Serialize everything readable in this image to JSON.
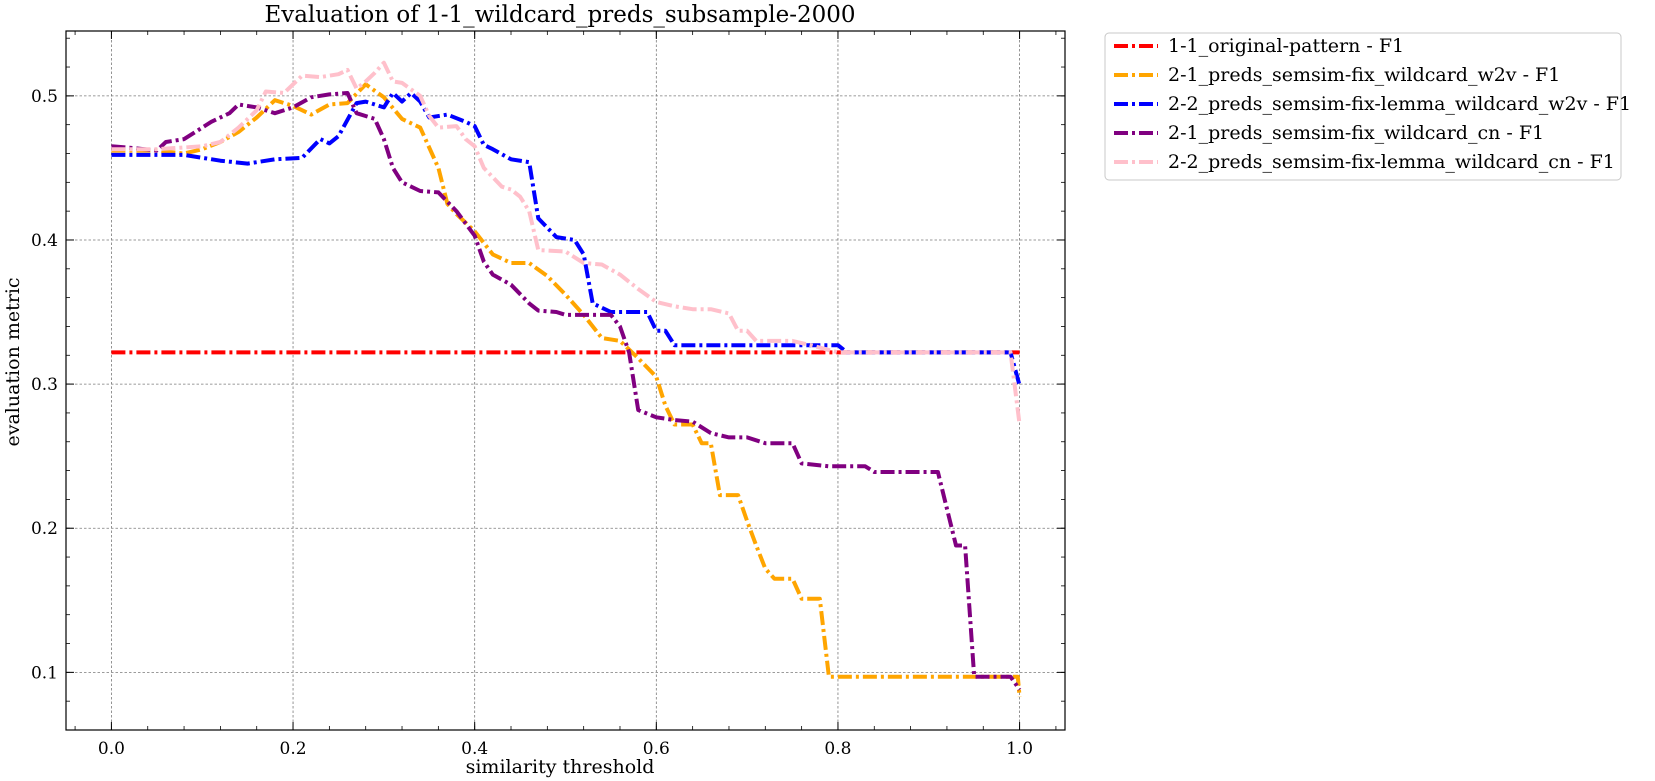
{
  "chart_data": {
    "type": "line",
    "title": "Evaluation of 1-1_wildcard_preds_subsample-2000",
    "xlabel": "similarity threshold",
    "ylabel": "evaluation metric",
    "xlim": [
      -0.05,
      1.05
    ],
    "ylim": [
      0.06,
      0.545
    ],
    "xticks": [
      "0.0",
      "0.2",
      "0.4",
      "0.6",
      "0.8",
      "1.0"
    ],
    "xtick_values": [
      0.0,
      0.2,
      0.4,
      0.6,
      0.8,
      1.0
    ],
    "yticks": [
      "0.1",
      "0.2",
      "0.3",
      "0.4",
      "0.5"
    ],
    "ytick_values": [
      0.1,
      0.2,
      0.3,
      0.4,
      0.5
    ],
    "grid": true,
    "legend_position": "outside-top-right",
    "series": [
      {
        "name": "1-1_original-pattern - F1",
        "color": "#ff0000",
        "points": [
          [
            0.0,
            0.322
          ],
          [
            1.0,
            0.322
          ]
        ]
      },
      {
        "name": "2-1_preds_semsim-fix_wildcard_w2v - F1",
        "color": "#ffa500",
        "points": [
          [
            0.0,
            0.462
          ],
          [
            0.05,
            0.462
          ],
          [
            0.08,
            0.46
          ],
          [
            0.1,
            0.463
          ],
          [
            0.12,
            0.468
          ],
          [
            0.14,
            0.475
          ],
          [
            0.16,
            0.485
          ],
          [
            0.18,
            0.497
          ],
          [
            0.2,
            0.493
          ],
          [
            0.22,
            0.487
          ],
          [
            0.24,
            0.494
          ],
          [
            0.26,
            0.495
          ],
          [
            0.28,
            0.508
          ],
          [
            0.3,
            0.499
          ],
          [
            0.32,
            0.484
          ],
          [
            0.34,
            0.478
          ],
          [
            0.36,
            0.45
          ],
          [
            0.37,
            0.425
          ],
          [
            0.38,
            0.418
          ],
          [
            0.4,
            0.406
          ],
          [
            0.42,
            0.39
          ],
          [
            0.44,
            0.384
          ],
          [
            0.46,
            0.384
          ],
          [
            0.48,
            0.375
          ],
          [
            0.5,
            0.362
          ],
          [
            0.52,
            0.348
          ],
          [
            0.54,
            0.332
          ],
          [
            0.56,
            0.33
          ],
          [
            0.58,
            0.318
          ],
          [
            0.6,
            0.305
          ],
          [
            0.61,
            0.285
          ],
          [
            0.62,
            0.272
          ],
          [
            0.64,
            0.272
          ],
          [
            0.65,
            0.259
          ],
          [
            0.66,
            0.259
          ],
          [
            0.67,
            0.223
          ],
          [
            0.69,
            0.223
          ],
          [
            0.7,
            0.205
          ],
          [
            0.71,
            0.188
          ],
          [
            0.72,
            0.172
          ],
          [
            0.73,
            0.165
          ],
          [
            0.75,
            0.165
          ],
          [
            0.76,
            0.151
          ],
          [
            0.78,
            0.151
          ],
          [
            0.79,
            0.097
          ],
          [
            0.998,
            0.097
          ],
          [
            1.0,
            0.083
          ]
        ]
      },
      {
        "name": "2-2_preds_semsim-fix-lemma_wildcard_w2v - F1",
        "color": "#0000ff",
        "points": [
          [
            0.0,
            0.459
          ],
          [
            0.08,
            0.459
          ],
          [
            0.12,
            0.455
          ],
          [
            0.15,
            0.453
          ],
          [
            0.18,
            0.456
          ],
          [
            0.21,
            0.457
          ],
          [
            0.23,
            0.47
          ],
          [
            0.24,
            0.467
          ],
          [
            0.25,
            0.472
          ],
          [
            0.27,
            0.495
          ],
          [
            0.28,
            0.496
          ],
          [
            0.3,
            0.492
          ],
          [
            0.31,
            0.502
          ],
          [
            0.32,
            0.496
          ],
          [
            0.33,
            0.502
          ],
          [
            0.34,
            0.496
          ],
          [
            0.35,
            0.485
          ],
          [
            0.37,
            0.487
          ],
          [
            0.39,
            0.482
          ],
          [
            0.4,
            0.479
          ],
          [
            0.41,
            0.466
          ],
          [
            0.42,
            0.463
          ],
          [
            0.44,
            0.456
          ],
          [
            0.46,
            0.454
          ],
          [
            0.47,
            0.415
          ],
          [
            0.49,
            0.402
          ],
          [
            0.51,
            0.4
          ],
          [
            0.52,
            0.39
          ],
          [
            0.53,
            0.356
          ],
          [
            0.55,
            0.35
          ],
          [
            0.59,
            0.35
          ],
          [
            0.6,
            0.337
          ],
          [
            0.61,
            0.337
          ],
          [
            0.62,
            0.327
          ],
          [
            0.78,
            0.327
          ],
          [
            0.8,
            0.327
          ],
          [
            0.81,
            0.322
          ],
          [
            0.99,
            0.322
          ],
          [
            1.0,
            0.299
          ]
        ]
      },
      {
        "name": "2-1_preds_semsim-fix_wildcard_cn - F1",
        "color": "#800080",
        "points": [
          [
            0.0,
            0.465
          ],
          [
            0.02,
            0.464
          ],
          [
            0.05,
            0.462
          ],
          [
            0.06,
            0.468
          ],
          [
            0.08,
            0.47
          ],
          [
            0.11,
            0.482
          ],
          [
            0.13,
            0.488
          ],
          [
            0.14,
            0.494
          ],
          [
            0.16,
            0.492
          ],
          [
            0.18,
            0.488
          ],
          [
            0.2,
            0.492
          ],
          [
            0.22,
            0.499
          ],
          [
            0.24,
            0.501
          ],
          [
            0.26,
            0.502
          ],
          [
            0.27,
            0.488
          ],
          [
            0.29,
            0.484
          ],
          [
            0.3,
            0.47
          ],
          [
            0.31,
            0.45
          ],
          [
            0.32,
            0.44
          ],
          [
            0.34,
            0.434
          ],
          [
            0.36,
            0.433
          ],
          [
            0.38,
            0.42
          ],
          [
            0.4,
            0.403
          ],
          [
            0.41,
            0.385
          ],
          [
            0.42,
            0.376
          ],
          [
            0.44,
            0.369
          ],
          [
            0.46,
            0.356
          ],
          [
            0.47,
            0.351
          ],
          [
            0.49,
            0.35
          ],
          [
            0.5,
            0.348
          ],
          [
            0.55,
            0.348
          ],
          [
            0.56,
            0.34
          ],
          [
            0.57,
            0.322
          ],
          [
            0.58,
            0.282
          ],
          [
            0.6,
            0.277
          ],
          [
            0.62,
            0.275
          ],
          [
            0.64,
            0.274
          ],
          [
            0.66,
            0.266
          ],
          [
            0.68,
            0.263
          ],
          [
            0.7,
            0.263
          ],
          [
            0.72,
            0.259
          ],
          [
            0.75,
            0.259
          ],
          [
            0.76,
            0.245
          ],
          [
            0.79,
            0.243
          ],
          [
            0.83,
            0.243
          ],
          [
            0.84,
            0.239
          ],
          [
            0.91,
            0.239
          ],
          [
            0.93,
            0.188
          ],
          [
            0.94,
            0.188
          ],
          [
            0.95,
            0.097
          ],
          [
            0.99,
            0.097
          ],
          [
            1.0,
            0.088
          ]
        ]
      },
      {
        "name": "2-2_preds_semsim-fix-lemma_wildcard_cn - F1",
        "color": "#ffc0cb",
        "points": [
          [
            0.0,
            0.463
          ],
          [
            0.05,
            0.463
          ],
          [
            0.1,
            0.465
          ],
          [
            0.12,
            0.468
          ],
          [
            0.14,
            0.478
          ],
          [
            0.16,
            0.49
          ],
          [
            0.17,
            0.503
          ],
          [
            0.19,
            0.502
          ],
          [
            0.21,
            0.514
          ],
          [
            0.23,
            0.513
          ],
          [
            0.25,
            0.515
          ],
          [
            0.26,
            0.518
          ],
          [
            0.27,
            0.505
          ],
          [
            0.28,
            0.51
          ],
          [
            0.29,
            0.516
          ],
          [
            0.3,
            0.523
          ],
          [
            0.31,
            0.51
          ],
          [
            0.32,
            0.509
          ],
          [
            0.34,
            0.5
          ],
          [
            0.35,
            0.486
          ],
          [
            0.36,
            0.478
          ],
          [
            0.38,
            0.479
          ],
          [
            0.39,
            0.47
          ],
          [
            0.4,
            0.465
          ],
          [
            0.41,
            0.45
          ],
          [
            0.43,
            0.437
          ],
          [
            0.44,
            0.435
          ],
          [
            0.45,
            0.43
          ],
          [
            0.46,
            0.42
          ],
          [
            0.47,
            0.393
          ],
          [
            0.5,
            0.392
          ],
          [
            0.51,
            0.388
          ],
          [
            0.52,
            0.384
          ],
          [
            0.54,
            0.383
          ],
          [
            0.56,
            0.376
          ],
          [
            0.58,
            0.366
          ],
          [
            0.6,
            0.357
          ],
          [
            0.62,
            0.354
          ],
          [
            0.64,
            0.352
          ],
          [
            0.66,
            0.352
          ],
          [
            0.68,
            0.349
          ],
          [
            0.69,
            0.337
          ],
          [
            0.7,
            0.337
          ],
          [
            0.71,
            0.33
          ],
          [
            0.75,
            0.33
          ],
          [
            0.77,
            0.327
          ],
          [
            0.8,
            0.322
          ],
          [
            0.99,
            0.322
          ],
          [
            1.0,
            0.272
          ]
        ]
      }
    ]
  }
}
